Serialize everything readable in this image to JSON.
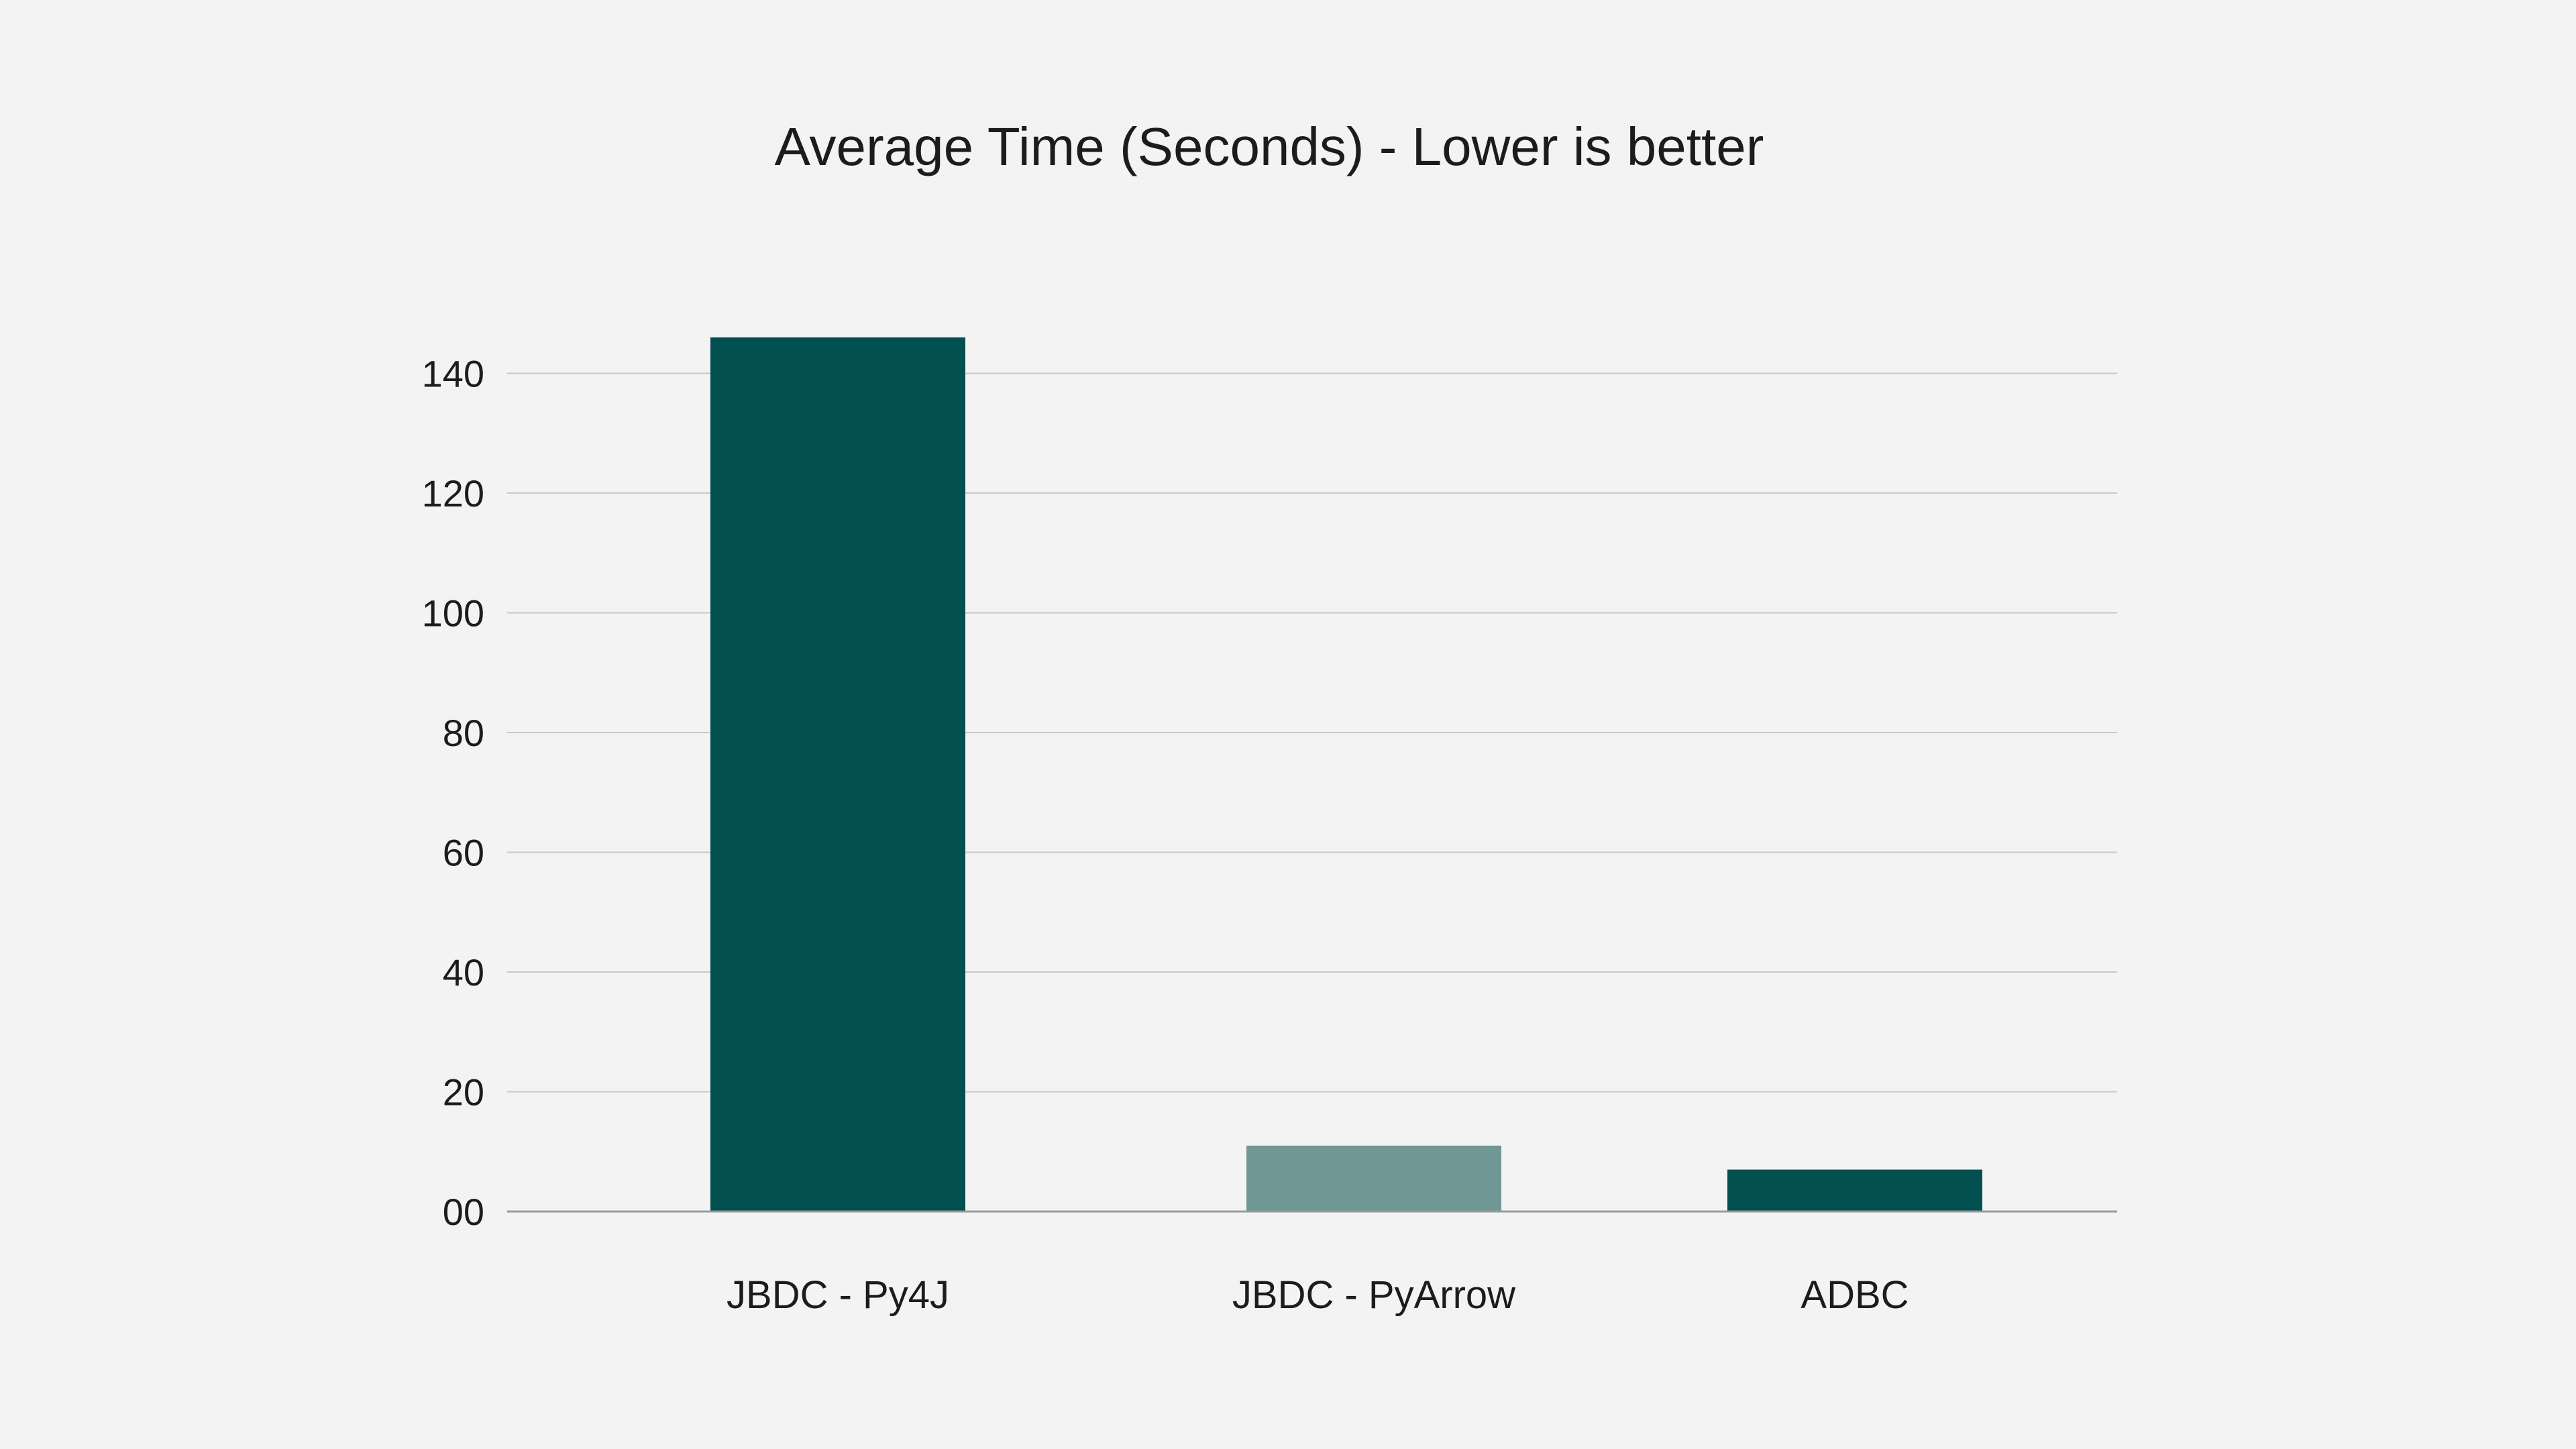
{
  "chart_data": {
    "type": "bar",
    "title": "Average Time (Seconds) - Lower is better",
    "xlabel": "",
    "ylabel": "",
    "categories": [
      "JBDC - Py4J",
      "JBDC - PyArrow",
      "ADBC"
    ],
    "values": [
      146,
      11,
      7
    ],
    "bar_colors": [
      "#014f4f",
      "#729797",
      "#014f4f"
    ],
    "ylim": [
      0,
      146
    ],
    "yticks": [
      0,
      20,
      40,
      60,
      80,
      100,
      120,
      140
    ],
    "ytick_labels": [
      "00",
      "20",
      "40",
      "60",
      "80",
      "100",
      "120",
      "140"
    ],
    "grid": true,
    "legend": "none"
  },
  "colors": {
    "background": "#f3f3f3",
    "gridline": "#c8c8c8",
    "axis": "#9a9a9a",
    "text": "#1c1c1c"
  }
}
